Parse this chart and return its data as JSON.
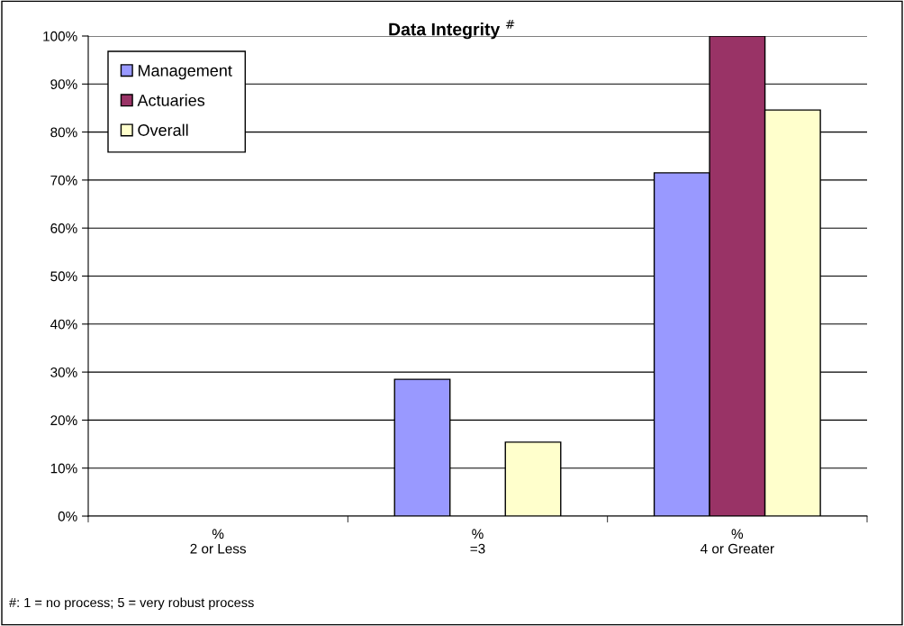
{
  "chart_data": {
    "type": "bar",
    "title": "Data Integrity $^{#}$",
    "categories": [
      "%\n2 or Less",
      "%\n=3",
      "%\n4 or Greater"
    ],
    "series": [
      {
        "name": "Management",
        "color": "#9999ff",
        "values": [
          0,
          28.5,
          71.5
        ]
      },
      {
        "name": "Actuaries",
        "color": "#993366",
        "values": [
          0,
          0,
          100
        ]
      },
      {
        "name": "Overall",
        "color": "#ffffcc",
        "values": [
          0,
          15.4,
          84.6
        ]
      }
    ],
    "ylim": [
      0,
      100
    ],
    "yticks": [
      {
        "value": 0,
        "label": "0%"
      },
      {
        "value": 10,
        "label": "10%"
      },
      {
        "value": 20,
        "label": "20%"
      },
      {
        "value": 30,
        "label": "30%"
      },
      {
        "value": 40,
        "label": "40%"
      },
      {
        "value": 50,
        "label": "50%"
      },
      {
        "value": 60,
        "label": "60%"
      },
      {
        "value": 70,
        "label": "70%"
      },
      {
        "value": 80,
        "label": "80%"
      },
      {
        "value": 90,
        "label": "90%"
      },
      {
        "value": 100,
        "label": "100%"
      }
    ],
    "grid": "y",
    "legend": "top left",
    "annotations": [
      "#: 1 = no process; 5 = very robust process"
    ]
  }
}
